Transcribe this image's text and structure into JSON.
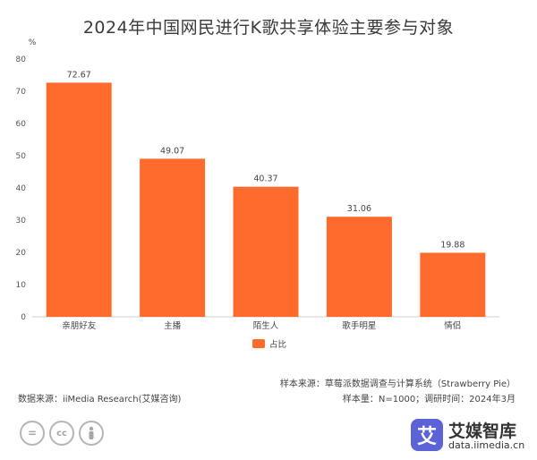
{
  "chart_data": {
    "type": "bar",
    "title": "2024年中国网民进行K歌共享体验主要参与对象",
    "unit_label": "%",
    "categories": [
      "亲朋好友",
      "主播",
      "陌生人",
      "歌手明星",
      "情侣"
    ],
    "series": [
      {
        "name": "占比",
        "values": [
          72.67,
          49.07,
          40.37,
          31.06,
          19.88
        ],
        "color": "#ff6b2c"
      }
    ],
    "ylim": [
      0,
      80
    ],
    "yticks": [
      0,
      10,
      20,
      30,
      40,
      50,
      60,
      70,
      80
    ],
    "legend_position": "bottom-center",
    "grid": false
  },
  "footer": {
    "sample_source": "样本来源：草莓派数据调查与计算系统（Strawberry Pie）",
    "data_source": "数据来源：iiMedia Research(艾媒咨询)",
    "sample_info": "样本量：N=1000；调研时间：2024年3月"
  },
  "license_icons": [
    "=",
    "cc",
    "person"
  ],
  "brand": {
    "logo_char": "艾",
    "name": "艾媒智库",
    "url": "data.iimedia.cn"
  }
}
